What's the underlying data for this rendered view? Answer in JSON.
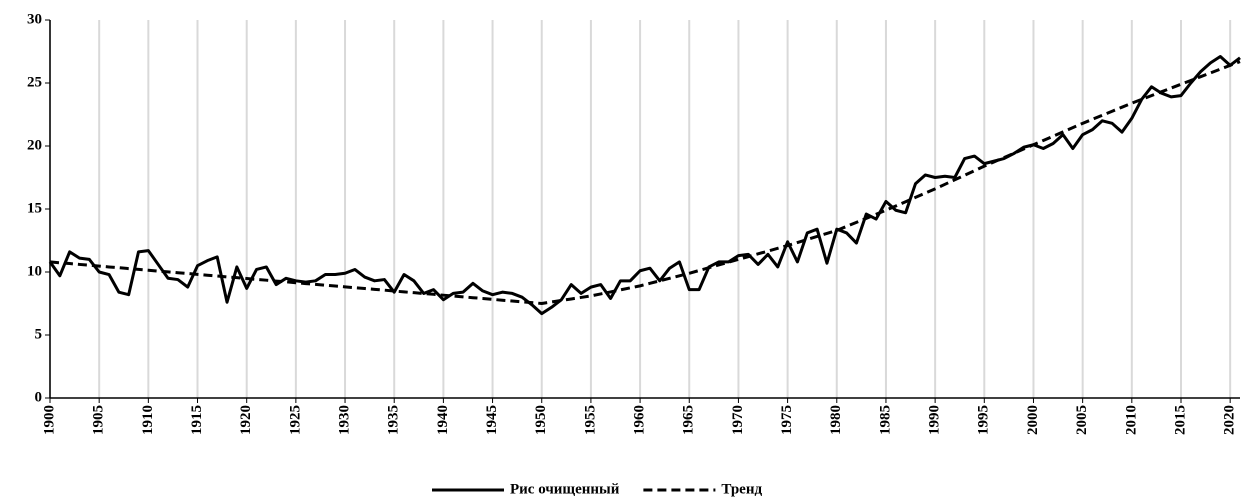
{
  "chart_data": {
    "type": "line",
    "x": [
      1900,
      1901,
      1902,
      1903,
      1904,
      1905,
      1906,
      1907,
      1908,
      1909,
      1910,
      1911,
      1912,
      1913,
      1914,
      1915,
      1916,
      1917,
      1918,
      1919,
      1920,
      1921,
      1922,
      1923,
      1924,
      1925,
      1926,
      1927,
      1928,
      1929,
      1930,
      1931,
      1932,
      1933,
      1934,
      1935,
      1936,
      1937,
      1938,
      1939,
      1940,
      1941,
      1942,
      1943,
      1944,
      1945,
      1946,
      1947,
      1948,
      1949,
      1950,
      1951,
      1952,
      1953,
      1954,
      1955,
      1956,
      1957,
      1958,
      1959,
      1960,
      1961,
      1962,
      1963,
      1964,
      1965,
      1966,
      1967,
      1968,
      1969,
      1970,
      1971,
      1972,
      1973,
      1974,
      1975,
      1976,
      1977,
      1978,
      1979,
      1980,
      1981,
      1982,
      1983,
      1984,
      1985,
      1986,
      1987,
      1988,
      1989,
      1990,
      1991,
      1992,
      1993,
      1994,
      1995,
      1996,
      1997,
      1998,
      1999,
      2000,
      2001,
      2002,
      2003,
      2004,
      2005,
      2006,
      2007,
      2008,
      2009,
      2010,
      2011,
      2012,
      2013,
      2014,
      2015,
      2016,
      2017,
      2018,
      2019,
      2020,
      2021
    ],
    "series": [
      {
        "name": "Рис очищенный",
        "color": "#000000",
        "style": "solid",
        "values": [
          10.8,
          9.7,
          11.6,
          11.1,
          11.0,
          10.0,
          9.8,
          8.4,
          8.2,
          11.6,
          11.7,
          10.6,
          9.5,
          9.4,
          8.8,
          10.5,
          10.9,
          11.2,
          7.6,
          10.4,
          8.7,
          10.2,
          10.4,
          9.0,
          9.5,
          9.3,
          9.2,
          9.3,
          9.8,
          9.8,
          9.9,
          10.2,
          9.6,
          9.3,
          9.4,
          8.4,
          9.8,
          9.3,
          8.3,
          8.6,
          7.8,
          8.3,
          8.4,
          9.1,
          8.5,
          8.2,
          8.4,
          8.3,
          8.0,
          7.4,
          6.7,
          7.2,
          7.8,
          9.0,
          8.3,
          8.8,
          9.0,
          7.9,
          9.3,
          9.3,
          10.1,
          10.3,
          9.3,
          10.3,
          10.8,
          8.6,
          8.6,
          10.4,
          10.8,
          10.8,
          11.3,
          11.4,
          10.6,
          11.4,
          10.4,
          12.4,
          10.8,
          13.1,
          13.4,
          10.7,
          13.4,
          13.1,
          12.3,
          14.6,
          14.2,
          15.6,
          14.9,
          14.7,
          17.0,
          17.7,
          17.5,
          17.6,
          17.5,
          19.0,
          19.2,
          18.6,
          18.8,
          19.0,
          19.4,
          19.9,
          20.1,
          19.8,
          20.2,
          20.9,
          19.8,
          20.9,
          21.3,
          22.0,
          21.8,
          21.1,
          22.2,
          23.7,
          24.7,
          24.2,
          23.9,
          24.0,
          25.0,
          25.9,
          26.6,
          27.1,
          26.4,
          27.0
        ]
      },
      {
        "name": "Тренд",
        "color": "#000000",
        "style": "dashed",
        "values": [
          10.8,
          10.73,
          10.67,
          10.6,
          10.54,
          10.47,
          10.4,
          10.34,
          10.27,
          10.21,
          10.14,
          10.07,
          10.01,
          9.94,
          9.88,
          9.81,
          9.74,
          9.68,
          9.61,
          9.55,
          9.48,
          9.41,
          9.35,
          9.28,
          9.22,
          9.15,
          9.08,
          9.02,
          8.95,
          8.89,
          8.82,
          8.75,
          8.69,
          8.62,
          8.56,
          8.49,
          8.42,
          8.36,
          8.29,
          8.23,
          8.16,
          8.09,
          8.03,
          7.96,
          7.9,
          7.83,
          7.76,
          7.7,
          7.63,
          7.57,
          7.5,
          7.62,
          7.74,
          7.86,
          7.98,
          8.1,
          8.26,
          8.42,
          8.58,
          8.74,
          8.9,
          9.1,
          9.3,
          9.5,
          9.7,
          9.9,
          10.12,
          10.34,
          10.56,
          10.78,
          11.0,
          11.22,
          11.44,
          11.66,
          11.88,
          12.1,
          12.34,
          12.58,
          12.82,
          13.06,
          13.3,
          13.62,
          13.94,
          14.26,
          14.58,
          14.9,
          15.24,
          15.58,
          15.92,
          16.26,
          16.6,
          16.96,
          17.32,
          17.68,
          18.04,
          18.4,
          18.74,
          19.08,
          19.42,
          19.76,
          20.1,
          20.44,
          20.78,
          21.12,
          21.46,
          21.8,
          22.12,
          22.44,
          22.76,
          23.08,
          23.4,
          23.7,
          24.0,
          24.3,
          24.6,
          24.9,
          25.2,
          25.5,
          25.8,
          26.1,
          26.4,
          26.7
        ]
      }
    ],
    "xlim": [
      1900,
      2021
    ],
    "xticks": [
      1900,
      1905,
      1910,
      1915,
      1920,
      1925,
      1930,
      1935,
      1940,
      1945,
      1950,
      1955,
      1960,
      1965,
      1970,
      1975,
      1980,
      1985,
      1990,
      1995,
      2000,
      2005,
      2010,
      2015,
      2020
    ],
    "ylim": [
      0,
      30
    ],
    "yticks": [
      0,
      5,
      10,
      15,
      20,
      25,
      30
    ],
    "grid": "x",
    "legend": "bottom"
  }
}
